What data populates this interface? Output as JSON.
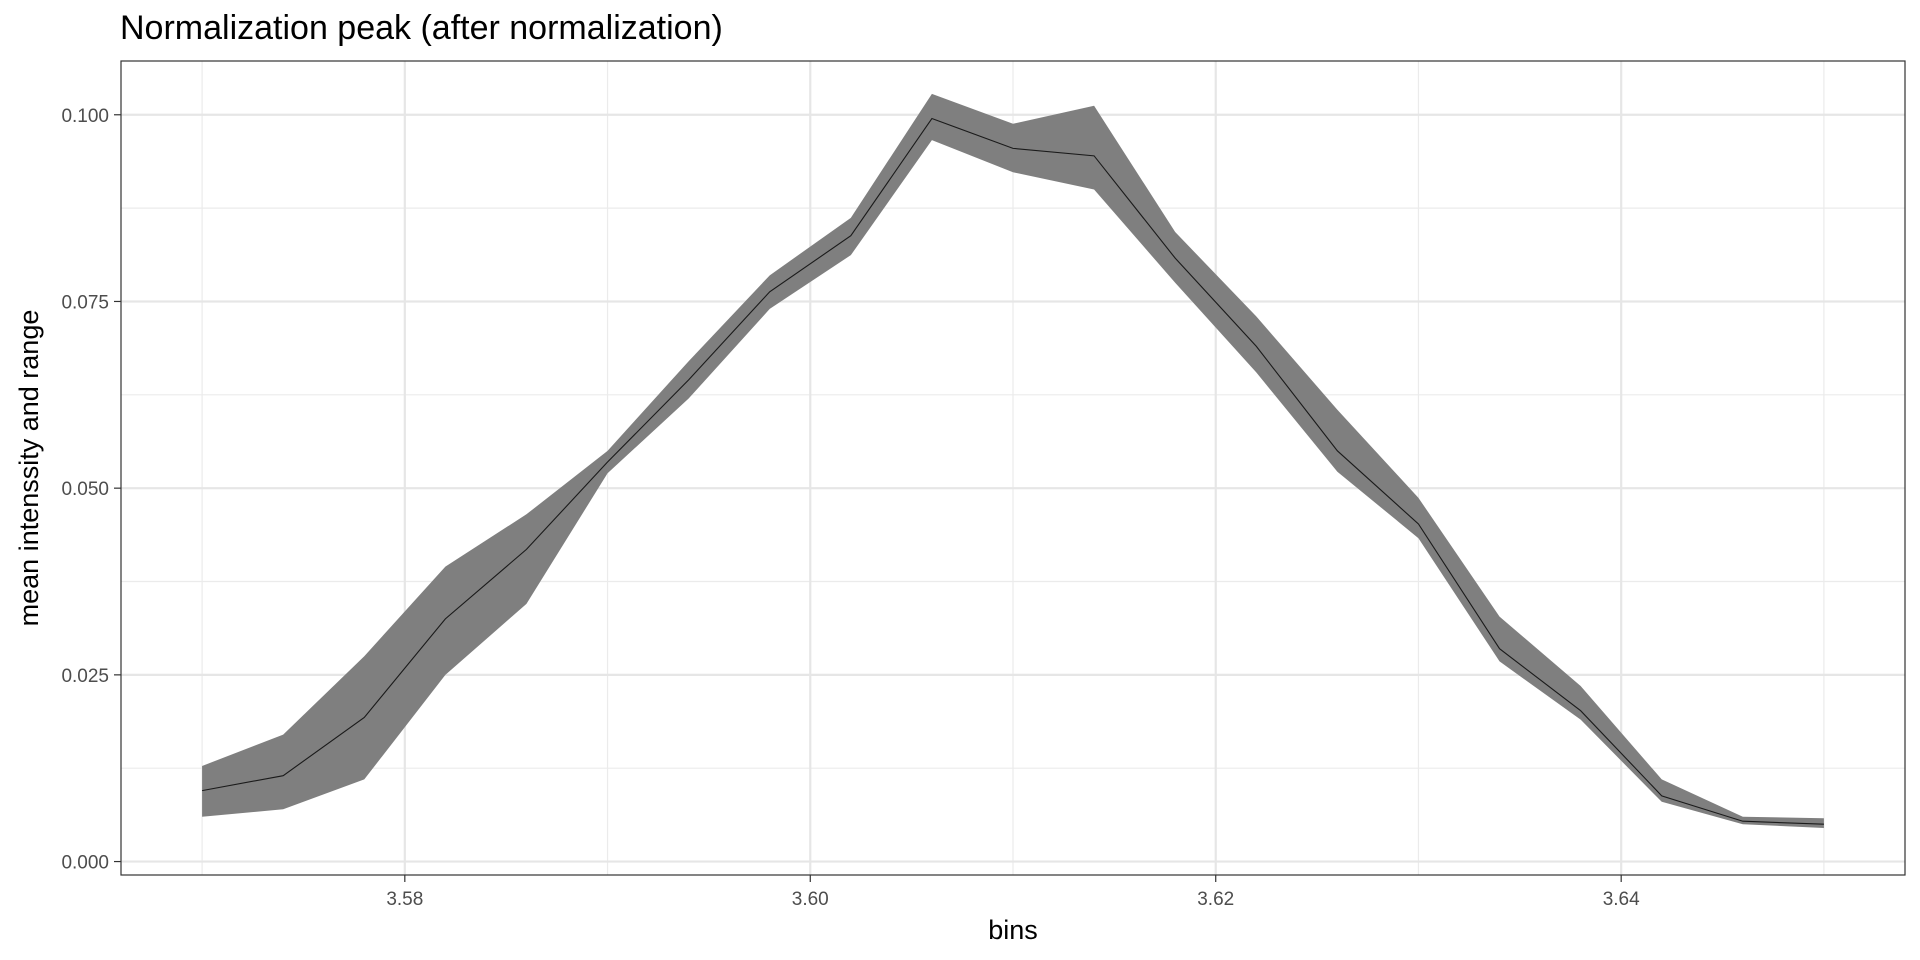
{
  "chart_data": {
    "type": "area",
    "title": "Normalization peak (after normalization)",
    "xlabel": "bins",
    "ylabel": "mean intenssity and range",
    "xlim": [
      3.566,
      3.654
    ],
    "ylim": [
      -0.0018,
      0.1072
    ],
    "x_ticks": [
      3.58,
      3.6,
      3.62,
      3.64
    ],
    "x_tick_labels": [
      "3.58",
      "3.60",
      "3.62",
      "3.64"
    ],
    "y_ticks": [
      0.0,
      0.025,
      0.05,
      0.075,
      0.1
    ],
    "y_tick_labels": [
      "0.000",
      "0.025",
      "0.050",
      "0.075",
      "0.100"
    ],
    "grid": true,
    "x": [
      3.57,
      3.574,
      3.578,
      3.582,
      3.586,
      3.59,
      3.594,
      3.598,
      3.602,
      3.606,
      3.61,
      3.614,
      3.618,
      3.622,
      3.626,
      3.63,
      3.634,
      3.638,
      3.642,
      3.646,
      3.65
    ],
    "series": [
      {
        "type": "ribbon",
        "color": "#7f7f7f",
        "lower": [
          0.006,
          0.007,
          0.011,
          0.025,
          0.0345,
          0.052,
          0.062,
          0.074,
          0.0812,
          0.0966,
          0.0923,
          0.09,
          0.0775,
          0.0655,
          0.0522,
          0.0433,
          0.0268,
          0.019,
          0.008,
          0.005,
          0.0045
        ],
        "upper": [
          0.0128,
          0.017,
          0.0275,
          0.0395,
          0.0465,
          0.055,
          0.067,
          0.0785,
          0.0862,
          0.1028,
          0.0988,
          0.1012,
          0.0843,
          0.073,
          0.0605,
          0.0487,
          0.0328,
          0.0235,
          0.011,
          0.006,
          0.0058
        ]
      },
      {
        "type": "line",
        "color": "#1a1a1a",
        "values": [
          0.0095,
          0.0115,
          0.0193,
          0.0325,
          0.0418,
          0.0535,
          0.0645,
          0.0763,
          0.0838,
          0.0995,
          0.0955,
          0.0945,
          0.0808,
          0.069,
          0.055,
          0.0452,
          0.0285,
          0.0202,
          0.0088,
          0.0054,
          0.005
        ]
      }
    ]
  }
}
